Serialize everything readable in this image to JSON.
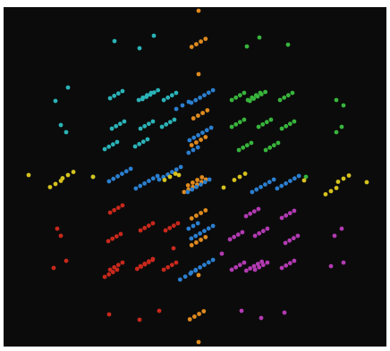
{
  "scene": {
    "background": "#0b0b0b",
    "palette": {
      "orange": "#e08a1e",
      "cyan": "#2ab3b8",
      "green": "#38b43c",
      "blue": "#2b7fd0",
      "yellow": "#d6c21e",
      "red": "#c8281c",
      "magenta": "#b23ab2"
    }
  }
}
